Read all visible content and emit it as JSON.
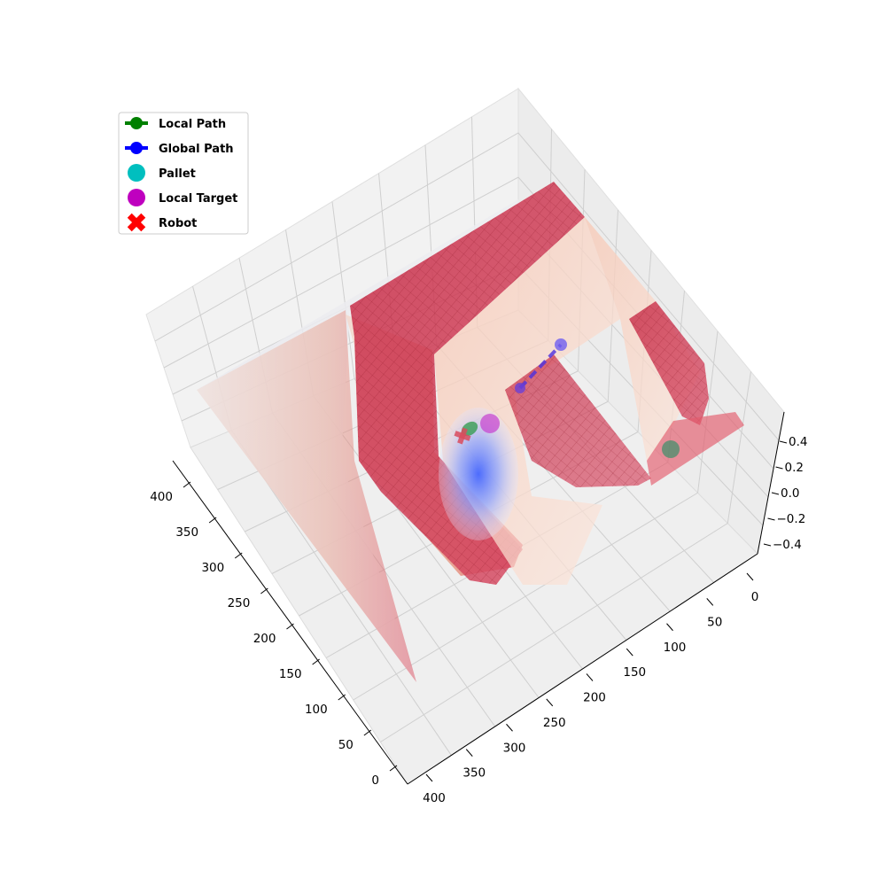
{
  "chart_data": {
    "type": "surface3d",
    "title": "",
    "colormap": "coolwarm",
    "surface_description_free": true,
    "axes": {
      "x": {
        "ticks": [
          0,
          50,
          100,
          150,
          200,
          250,
          300,
          350,
          400
        ],
        "range": [
          0,
          400
        ],
        "label": ""
      },
      "y": {
        "ticks": [
          0,
          50,
          100,
          150,
          200,
          250,
          300,
          350,
          400
        ],
        "range": [
          0,
          400
        ],
        "label": ""
      },
      "z": {
        "ticks": [
          "−0.4",
          "−0.2",
          "0.0",
          "0.2",
          "0.4"
        ],
        "tick_values": [
          -0.4,
          -0.2,
          0.0,
          0.2,
          0.4
        ],
        "range": [
          -0.45,
          0.45
        ],
        "label": ""
      }
    },
    "legend": {
      "position": "upper-left",
      "entries": [
        {
          "label": "Local Path",
          "color": "#008000",
          "marker": "line-circle"
        },
        {
          "label": "Global Path",
          "color": "#0000ff",
          "marker": "line-circle"
        },
        {
          "label": "Pallet",
          "color": "#00bfbf",
          "marker": "circle"
        },
        {
          "label": "Local Target",
          "color": "#bf00bf",
          "marker": "circle"
        },
        {
          "label": "Robot",
          "color": "#ff0000",
          "marker": "x"
        }
      ]
    },
    "colors": {
      "high": "#c8102e",
      "mid": "#f7c7b0",
      "flat": "#e6e6ea",
      "low": "#3b5cff"
    }
  }
}
